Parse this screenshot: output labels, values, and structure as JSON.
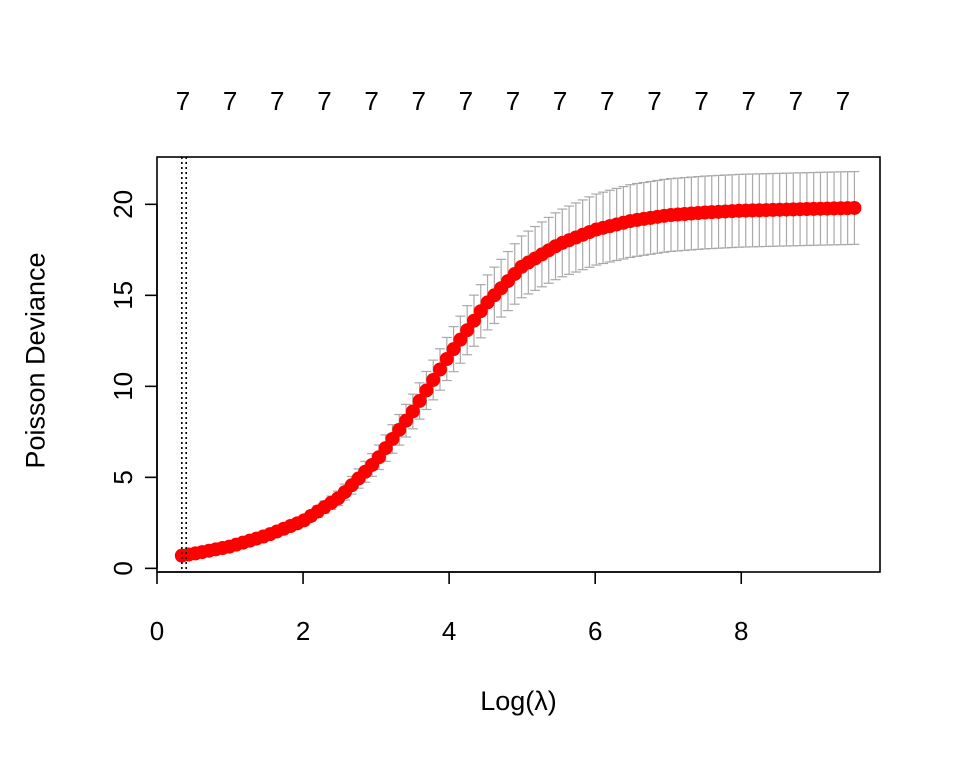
{
  "chart_data": {
    "type": "scatter",
    "title": "",
    "xlabel": "Log(λ)",
    "ylabel": "Poisson Deviance",
    "xlim": [
      0,
      9.9
    ],
    "ylim": [
      -0.2,
      22.6
    ],
    "x_ticks": [
      0,
      2,
      4,
      6,
      8
    ],
    "x_tick_labels": [
      "0",
      "2",
      "4",
      "6",
      "8"
    ],
    "y_ticks": [
      0,
      5,
      10,
      15,
      20
    ],
    "y_tick_labels": [
      "0",
      "5",
      "10",
      "15",
      "20"
    ],
    "top_axis_labels": [
      "7",
      "7",
      "7",
      "7",
      "7",
      "7",
      "7",
      "7",
      "7",
      "7",
      "7",
      "7",
      "7",
      "7",
      "7"
    ],
    "reference_lines_x": [
      0.34,
      0.4
    ],
    "grid": false,
    "series": [
      {
        "color": "#ff0000",
        "error_bar_color": "#a9a9a9",
        "x": [
          0.34,
          0.5,
          1.0,
          1.5,
          2.0,
          2.5,
          3.0,
          3.5,
          4.0,
          4.5,
          5.0,
          5.5,
          6.0,
          6.5,
          7.0,
          7.5,
          8.0,
          8.5,
          9.0,
          9.55
        ],
        "y": [
          0.7,
          0.8,
          1.2,
          1.8,
          2.6,
          3.9,
          5.9,
          8.6,
          11.7,
          14.5,
          16.6,
          17.8,
          18.6,
          19.1,
          19.4,
          19.55,
          19.65,
          19.7,
          19.75,
          19.8
        ],
        "error": [
          0.05,
          0.06,
          0.1,
          0.15,
          0.25,
          0.4,
          0.65,
          0.95,
          1.2,
          1.5,
          1.7,
          1.85,
          1.95,
          2.0,
          2.0,
          2.0,
          2.0,
          2.0,
          2.0,
          2.0
        ]
      }
    ]
  }
}
